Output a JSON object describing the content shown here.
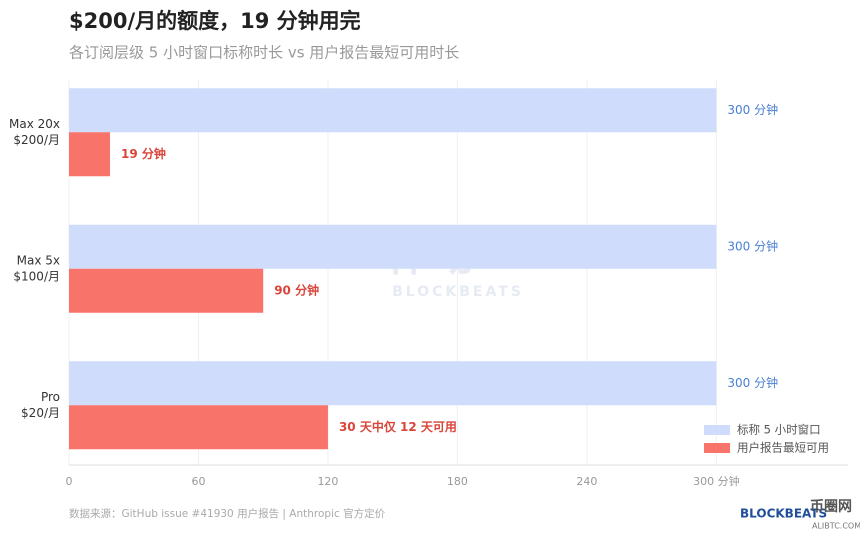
{
  "chart_data": {
    "type": "hbar",
    "title": "$200/月的额度，19 分钟用完",
    "subtitle": "各订阅层级 5 小时窗口标称时长 vs 用户报告最短可用时长",
    "categories": [
      [
        "Max 20x",
        "$200/月"
      ],
      [
        "Max 5x",
        "$100/月"
      ],
      [
        "Pro",
        "$20/月"
      ]
    ],
    "series": [
      {
        "name": "标称 5 小时窗口",
        "color": "#cfdcfb",
        "values": [
          300,
          300,
          300
        ],
        "value_labels": [
          "300 分钟",
          "300 分钟",
          "300 分钟"
        ]
      },
      {
        "name": "用户报告最短可用",
        "color": "#f8736a",
        "values": [
          19,
          90,
          120
        ],
        "value_labels": [
          "19 分钟",
          "90 分钟",
          null
        ]
      }
    ],
    "annotations": [
      {
        "series": 1,
        "index": 2,
        "text": "30 天中仅 12 天可用"
      }
    ],
    "xlim": [
      0,
      361
    ],
    "xticks": [
      0,
      60,
      120,
      180,
      240,
      {
        "value": 300,
        "label": "300 分钟"
      }
    ],
    "grid": true,
    "legend": "lower-right",
    "source": "数据来源：GitHub issue #41930 用户报告 | Anthropic 官方定价",
    "watermarks": [
      "律动",
      "BLOCKBEATS",
      "币圈网",
      "ALIBTC.COM"
    ]
  }
}
